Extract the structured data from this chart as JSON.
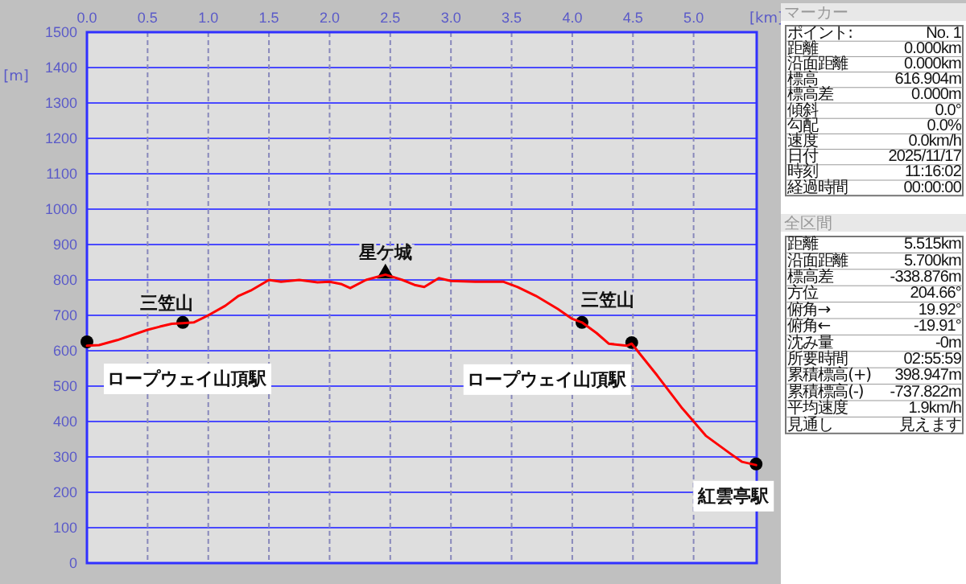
{
  "chart_data": [
    {
      "type": "line",
      "xlabel": "[km]",
      "ylabel": "[m]",
      "xlim": [
        0,
        5.52
      ],
      "ylim": [
        0,
        1500
      ],
      "xticks": [
        {
          "value": 0,
          "label": "0.0"
        },
        {
          "value": 0.5,
          "label": "0.5"
        },
        {
          "value": 1,
          "label": "1.0"
        },
        {
          "value": 1.5,
          "label": "1.5"
        },
        {
          "value": 2,
          "label": "2.0"
        },
        {
          "value": 2.5,
          "label": "2.5"
        },
        {
          "value": 3,
          "label": "3.0"
        },
        {
          "value": 3.5,
          "label": "3.5"
        },
        {
          "value": 4,
          "label": "4.0"
        },
        {
          "value": 4.5,
          "label": "4.5"
        },
        {
          "value": 5,
          "label": "5.0"
        }
      ],
      "yticks": [
        0,
        100,
        200,
        300,
        400,
        500,
        600,
        700,
        800,
        900,
        1000,
        1100,
        1200,
        1300,
        1400,
        1500
      ],
      "grid": true,
      "series": [
        {
          "type": "line",
          "color": "#ff0000",
          "marker": "none",
          "x": [
            0,
            0.1,
            0.25,
            0.5,
            0.6,
            0.7,
            0.79,
            0.88,
            1,
            1.14,
            1.25,
            1.35,
            1.5,
            1.6,
            1.75,
            1.9,
            2,
            2.1,
            2.17,
            2.3,
            2.46,
            2.6,
            2.7,
            2.78,
            2.9,
            3,
            3.2,
            3.43,
            3.55,
            3.7,
            3.88,
            4,
            4.08,
            4.2,
            4.3,
            4.45,
            4.49,
            4.7,
            4.9,
            5.1,
            5.3,
            5.4,
            5.515
          ],
          "values": [
            614,
            616,
            630,
            659,
            668,
            676,
            678,
            680,
            700,
            727,
            755,
            770,
            800,
            795,
            800,
            793,
            795,
            788,
            777,
            800,
            815,
            800,
            786,
            780,
            805,
            797,
            795,
            795,
            780,
            755,
            718,
            690,
            680,
            650,
            620,
            614,
            620,
            530,
            440,
            360,
            310,
            286,
            277
          ]
        },
        {
          "type": "scatter",
          "color": "#000000",
          "marker": "circle",
          "x": [
            0,
            0.79,
            4.08,
            4.49,
            5.515
          ],
          "values": [
            625,
            680,
            680,
            623,
            280
          ]
        },
        {
          "type": "scatter",
          "color": "#000000",
          "marker": "triangle",
          "x": [
            2.46
          ],
          "values": [
            818
          ]
        }
      ],
      "annotations": [
        {
          "text": "三笠山",
          "x": 0.79,
          "y": 680
        },
        {
          "text": "星ケ城",
          "x": 2.46,
          "y": 818
        },
        {
          "text": "ロープウェイ山頂駅",
          "x": 0,
          "y": 625
        },
        {
          "text": "三笠山",
          "x": 4.08,
          "y": 680
        },
        {
          "text": "ロープウェイ山頂駅",
          "x": 4.49,
          "y": 623
        },
        {
          "text": "紅雲亭駅",
          "x": 5.515,
          "y": 280
        }
      ]
    },
    {
      "type": "other",
      "title": "マーカー",
      "annotations": [
        "ポイント:",
        "No. 1",
        "距離",
        "0.000km",
        "沿面距離",
        "0.000km",
        "標高",
        "616.904m",
        "標高差",
        "0.000m",
        "傾斜",
        "0.0°",
        "勾配",
        "0.0%",
        "速度",
        "0.0km/h",
        "日付",
        "2025/11/17",
        "時刻",
        "11:16:02",
        "経過時間",
        "00:00:00"
      ]
    },
    {
      "type": "other",
      "title": "全区間",
      "annotations": [
        "距離",
        "5.515km",
        "沿面距離",
        "5.700km",
        "標高差",
        "-338.876m",
        "方位",
        "204.66°",
        "俯角→",
        "19.92°",
        "俯角←",
        "-19.91°",
        "沈み量",
        "-0m",
        "所要時間",
        "02:55:59",
        "累積標高(+)",
        "398.947m",
        "累積標高(-)",
        "-737.822m",
        "平均速度",
        "1.9km/h",
        "見通し",
        "見えます"
      ]
    }
  ]
}
